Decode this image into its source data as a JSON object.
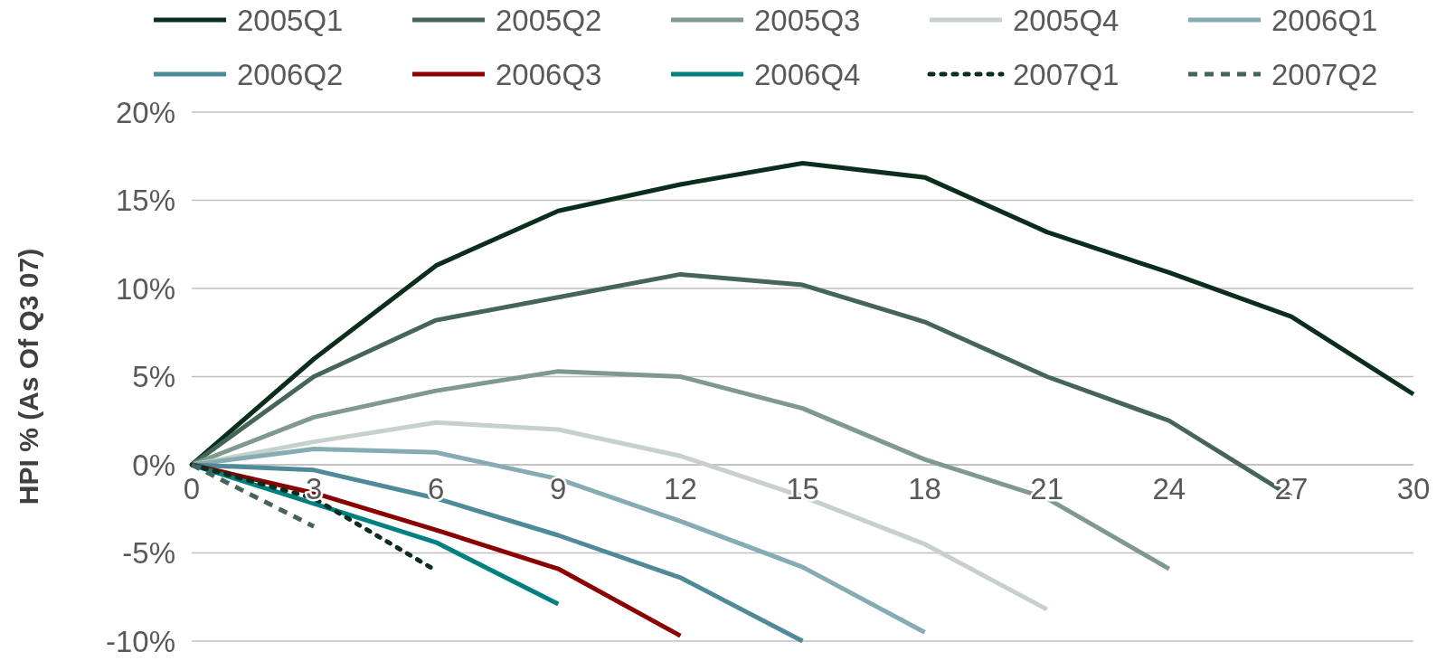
{
  "chart_data": {
    "type": "line",
    "ylabel": "HPI % (As Of Q3 07)",
    "xlim": [
      0,
      30
    ],
    "xticks": [
      0,
      3,
      6,
      9,
      12,
      15,
      18,
      21,
      24,
      27,
      30
    ],
    "ylim": [
      -10,
      20
    ],
    "yticks": [
      {
        "value": -10,
        "label": "-10%"
      },
      {
        "value": -5,
        "label": "-5%"
      },
      {
        "value": 0,
        "label": "0%"
      },
      {
        "value": 5,
        "label": "5%"
      },
      {
        "value": 10,
        "label": "10%"
      },
      {
        "value": 15,
        "label": "15%"
      },
      {
        "value": 20,
        "label": "20%"
      }
    ],
    "grid": "y",
    "legend": "top",
    "series": [
      {
        "name": "2005Q1",
        "color": "#0b2d1c",
        "x": [
          0,
          3,
          6,
          9,
          12,
          15,
          18,
          21,
          24,
          27,
          30
        ],
        "values": [
          0,
          6.0,
          11.3,
          14.4,
          15.9,
          17.1,
          16.3,
          13.2,
          10.9,
          8.4,
          4.0
        ]
      },
      {
        "name": "2005Q2",
        "color": "#46655a",
        "x": [
          0,
          3,
          6,
          9,
          12,
          15,
          18,
          21,
          24,
          27
        ],
        "values": [
          0,
          5.0,
          8.2,
          9.5,
          10.8,
          10.2,
          8.1,
          5.0,
          2.5,
          -1.8
        ]
      },
      {
        "name": "2005Q3",
        "color": "#7f9a8c",
        "x": [
          0,
          3,
          6,
          9,
          12,
          15,
          18,
          21,
          24
        ],
        "values": [
          0,
          2.7,
          4.2,
          5.3,
          5.0,
          3.2,
          0.3,
          -1.9,
          -5.9
        ]
      },
      {
        "name": "2005Q4",
        "color": "#c7d1cb",
        "x": [
          0,
          3,
          6,
          9,
          12,
          15,
          18,
          21
        ],
        "values": [
          0,
          1.3,
          2.4,
          2.0,
          0.5,
          -1.8,
          -4.5,
          -8.2
        ]
      },
      {
        "name": "2006Q1",
        "color": "#85abb3",
        "x": [
          0,
          3,
          6,
          9,
          12,
          15,
          18
        ],
        "values": [
          0,
          0.9,
          0.7,
          -0.8,
          -3.2,
          -5.8,
          -9.5
        ]
      },
      {
        "name": "2006Q2",
        "color": "#4f8a99",
        "x": [
          0,
          3,
          6,
          9,
          12,
          15
        ],
        "values": [
          0,
          -0.3,
          -1.9,
          -4.0,
          -6.4,
          -10.0
        ]
      },
      {
        "name": "2006Q3",
        "color": "#8b0000",
        "x": [
          0,
          3,
          6,
          9,
          12
        ],
        "values": [
          0,
          -1.6,
          -3.7,
          -5.9,
          -9.7
        ]
      },
      {
        "name": "2006Q4",
        "color": "#008080",
        "x": [
          0,
          3,
          6,
          9
        ],
        "values": [
          0,
          -2.2,
          -4.4,
          -7.9
        ]
      },
      {
        "name": "2007Q1",
        "color": "#0b2d1c",
        "line_style": "dotted",
        "x": [
          0,
          3,
          6
        ],
        "values": [
          0,
          -1.9,
          -6.0
        ]
      },
      {
        "name": "2007Q2",
        "color": "#46655a",
        "line_style": "dashed",
        "x": [
          0,
          3
        ],
        "values": [
          0,
          -3.5
        ]
      }
    ]
  }
}
